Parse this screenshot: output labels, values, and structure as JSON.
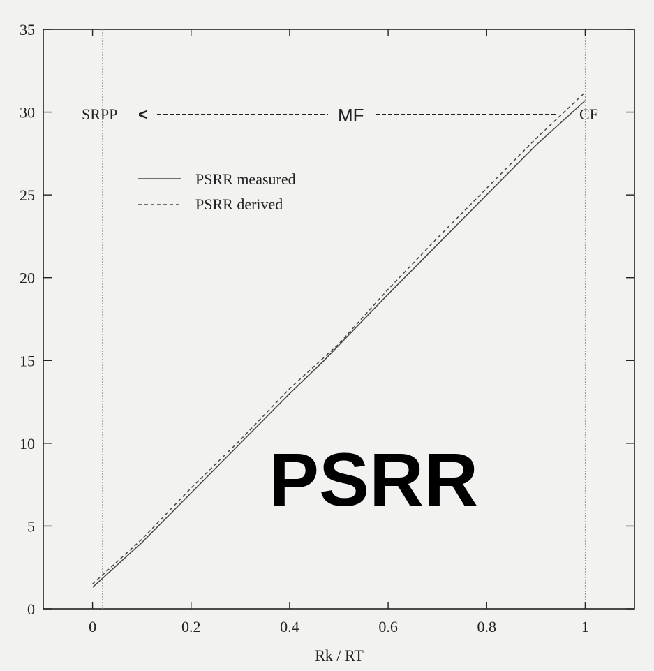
{
  "chart_data": {
    "type": "line",
    "title": "",
    "xlabel": "Rk / RT",
    "ylabel": "",
    "xlim": [
      -0.1,
      1.1
    ],
    "ylim": [
      0,
      35
    ],
    "grid": false,
    "legend_position": "upper-left",
    "x_ticks": [
      0,
      0.2,
      0.4,
      0.6,
      0.8,
      1
    ],
    "x_tick_labels": [
      "0",
      "0.2",
      "0.4",
      "0.6",
      "0.8",
      "1"
    ],
    "y_ticks": [
      0,
      5,
      10,
      15,
      20,
      25,
      30,
      35
    ],
    "y_tick_labels": [
      "0",
      "5",
      "10",
      "15",
      "20",
      "25",
      "30",
      "35"
    ],
    "reference_lines_x": [
      0.02,
      1.0
    ],
    "series": [
      {
        "name": "PSRR measured",
        "style": "solid",
        "color": "#444444",
        "points": [
          [
            0,
            1.3
          ],
          [
            0.1,
            4.0
          ],
          [
            0.2,
            7.0
          ],
          [
            0.3,
            10.0
          ],
          [
            0.4,
            13.0
          ],
          [
            0.47,
            15.0
          ],
          [
            0.6,
            19.0
          ],
          [
            0.7,
            22.0
          ],
          [
            0.8,
            25.0
          ],
          [
            0.9,
            28.0
          ],
          [
            1.0,
            30.7
          ]
        ]
      },
      {
        "name": "PSRR derived",
        "style": "dashed",
        "color": "#444444",
        "points": [
          [
            0,
            1.5
          ],
          [
            0.1,
            4.2
          ],
          [
            0.2,
            7.3
          ],
          [
            0.3,
            10.2
          ],
          [
            0.4,
            13.3
          ],
          [
            0.5,
            16.0
          ],
          [
            0.6,
            19.3
          ],
          [
            0.7,
            22.4
          ],
          [
            0.8,
            25.4
          ],
          [
            0.9,
            28.4
          ],
          [
            1.0,
            31.2
          ]
        ]
      }
    ],
    "annotations": {
      "left": "SRPP",
      "middle": "MF",
      "right": "CF",
      "arrow": "<",
      "big_label": "PSRR"
    }
  }
}
